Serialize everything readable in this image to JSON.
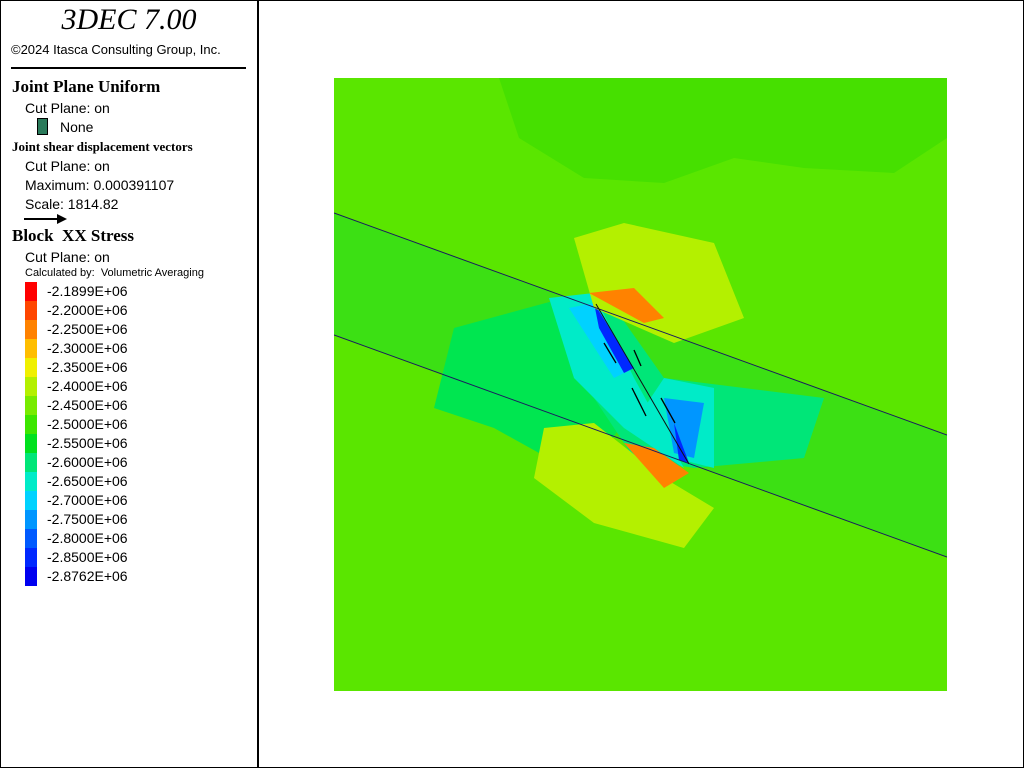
{
  "header": {
    "title": "3DEC 7.00",
    "copyright": "©2024 Itasca Consulting Group, Inc."
  },
  "joint_plane": {
    "title": "Joint Plane Uniform",
    "cut_plane": "Cut Plane: on",
    "legend_item": {
      "label": "None",
      "color": "#2a7a5a"
    }
  },
  "vectors": {
    "title": "Joint shear displacement vectors",
    "cut_plane": "Cut Plane: on",
    "maximum": "Maximum: 0.000391107",
    "scale": "Scale: 1814.82"
  },
  "stress": {
    "title": "Block  XX Stress",
    "cut_plane": "Cut Plane: on",
    "calculated_by": "Calculated by:  Volumetric Averaging",
    "levels": [
      {
        "label": "-2.1899E+06",
        "color": "#ff0000"
      },
      {
        "label": "-2.2000E+06",
        "color": "#ff4600"
      },
      {
        "label": "-2.2500E+06",
        "color": "#ff8200"
      },
      {
        "label": "-2.3000E+06",
        "color": "#ffbe00"
      },
      {
        "label": "-2.3500E+06",
        "color": "#f0f000"
      },
      {
        "label": "-2.4000E+06",
        "color": "#b4f000"
      },
      {
        "label": "-2.4500E+06",
        "color": "#78eb00"
      },
      {
        "label": "-2.5000E+06",
        "color": "#3ce600"
      },
      {
        "label": "-2.5500E+06",
        "color": "#00e11e"
      },
      {
        "label": "-2.6000E+06",
        "color": "#00e678"
      },
      {
        "label": "-2.6500E+06",
        "color": "#00ebc8"
      },
      {
        "label": "-2.7000E+06",
        "color": "#00d2ff"
      },
      {
        "label": "-2.7500E+06",
        "color": "#0096ff"
      },
      {
        "label": "-2.8000E+06",
        "color": "#005aff"
      },
      {
        "label": "-2.8500E+06",
        "color": "#0028ff"
      },
      {
        "label": "-2.8762E+06",
        "color": "#0000f0"
      }
    ]
  }
}
